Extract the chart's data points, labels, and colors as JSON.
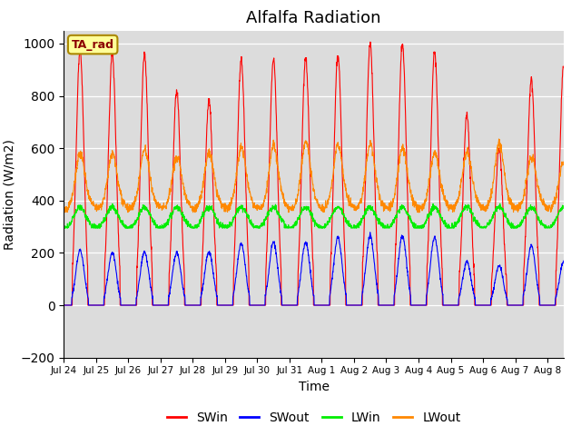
{
  "title": "Alfalfa Radiation",
  "xlabel": "Time",
  "ylabel": "Radiation (W/m2)",
  "ylim": [
    -200,
    1050
  ],
  "background_color": "#dcdcdc",
  "label_box_text": "TA_rad",
  "label_box_facecolor": "#ffff99",
  "label_box_edgecolor": "#aa8800",
  "colors": {
    "SWin": "#ff0000",
    "SWout": "#0000ff",
    "LWin": "#00ee00",
    "LWout": "#ff8800"
  },
  "yticks": [
    -200,
    0,
    200,
    400,
    600,
    800,
    1000
  ],
  "xtick_labels": [
    "Jul 24",
    "Jul 25",
    "Jul 26",
    "Jul 27",
    "Jul 28",
    "Jul 29",
    "Jul 30",
    "Jul 31",
    "Aug 1",
    "Aug 2",
    "Aug 3",
    "Aug 4",
    "Aug 5",
    "Aug 6",
    "Aug 7",
    "Aug 8"
  ],
  "SWin_peaks": [
    980,
    960,
    960,
    820,
    785,
    940,
    945,
    945,
    960,
    1000,
    1000,
    970,
    725,
    600,
    865,
    910
  ],
  "SWout_peaks": [
    210,
    200,
    205,
    200,
    205,
    235,
    240,
    240,
    260,
    265,
    265,
    260,
    165,
    150,
    225,
    165
  ],
  "LWin_base": 325,
  "LWout_base": 400,
  "LWout_peak_extra": [
    150,
    150,
    165,
    140,
    155,
    175,
    180,
    195,
    185,
    190,
    175,
    155,
    160,
    190,
    140,
    120
  ],
  "legend_labels": [
    "SWin",
    "SWout",
    "LWin",
    "LWout"
  ],
  "n_days": 15.5
}
